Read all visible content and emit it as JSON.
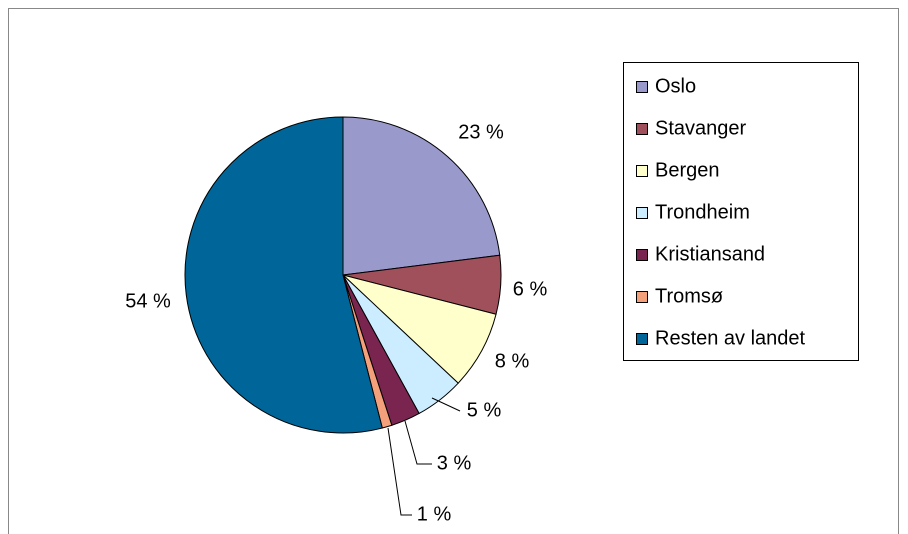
{
  "chart_data": {
    "type": "pie",
    "categories": [
      "Oslo",
      "Stavanger",
      "Bergen",
      "Trondheim",
      "Kristiansand",
      "Tromsø",
      "Resten av landet"
    ],
    "values": [
      23,
      6,
      8,
      5,
      3,
      1,
      54
    ],
    "value_labels": [
      "23 %",
      "6 %",
      "8 %",
      "5 %",
      "3 %",
      "1 %",
      "54 %"
    ],
    "colors": [
      "#9999cc",
      "#a0505a",
      "#ffffcc",
      "#ccecff",
      "#7a2450",
      "#f4a07a",
      "#006699"
    ],
    "legend": "right"
  }
}
